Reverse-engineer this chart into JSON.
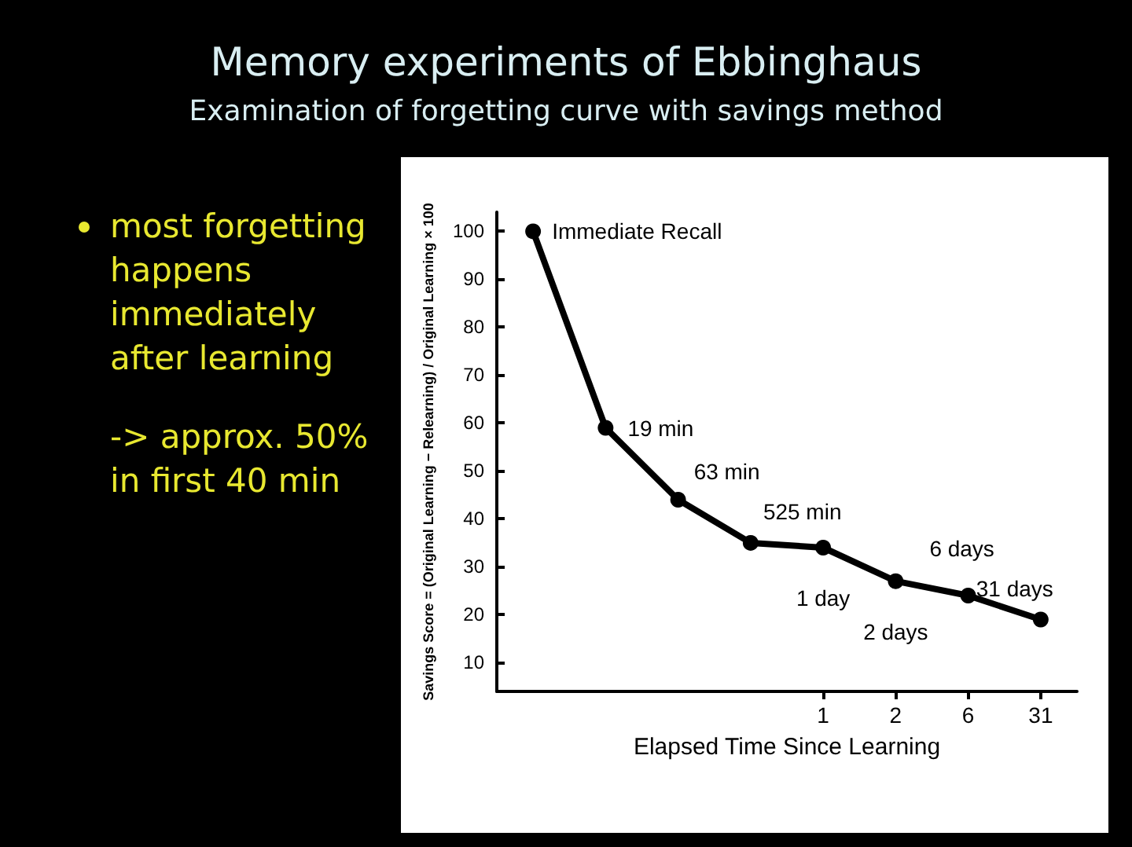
{
  "chart_data": {
    "type": "line",
    "title": "Memory experiments of Ebbinghaus",
    "subtitle": "Examination of forgetting curve with savings method",
    "xlabel": "Elapsed Time Since Learning",
    "ylabel": "Savings Score = (Original Learning − Relearning) / Original Learning × 100",
    "categories": [
      null,
      null,
      null,
      null,
      "1",
      "2",
      "6",
      "31"
    ],
    "series": [
      {
        "color": "#000000",
        "values": [
          100,
          59,
          44,
          35,
          34,
          27,
          24,
          19
        ]
      }
    ],
    "ylim": [
      4,
      104
    ],
    "yticks": [
      10,
      20,
      30,
      40,
      50,
      60,
      70,
      80,
      90,
      100
    ],
    "marker": "circle",
    "line_style": "solid",
    "grid": false,
    "annotations": [
      "most forgetting happens immediately after learning",
      "-> approx. 50% in first 40 min",
      "Immediate Recall",
      "19 min",
      "63 min",
      "525 min",
      "1 day",
      "2 days",
      "6 days",
      "31 days"
    ]
  }
}
